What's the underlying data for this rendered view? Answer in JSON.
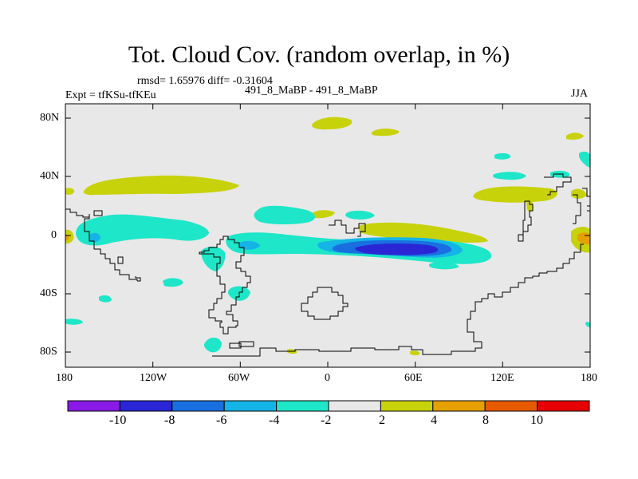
{
  "header": {
    "title": "Tot. Cloud Cov. (random overlap, in %)",
    "stats": "rmsd= 1.65976 diff= -0.31604",
    "experiment": "Expt = tfKSu-tfKEu",
    "comparison": "491_8_MaBP - 491_8_MaBP",
    "season": "JJA"
  },
  "axes": {
    "x_ticks": [
      "180",
      "120W",
      "60W",
      "0",
      "60E",
      "120E",
      "180"
    ],
    "y_ticks": [
      "80N",
      "40N",
      "0",
      "40S",
      "80S"
    ]
  },
  "colorbar": {
    "labels": [
      "-10",
      "-8",
      "-6",
      "-4",
      "-2",
      "2",
      "4",
      "8",
      "10"
    ],
    "colors": [
      "#8a1ae6",
      "#2a26d6",
      "#1a6fe0",
      "#14b4e6",
      "#1ee6c8",
      "#e8e8e8",
      "#c8d20a",
      "#e6a000",
      "#e65a00",
      "#e60000"
    ]
  },
  "map_colors": {
    "background": "#e8e8e8",
    "neg_light": "#1ee6c8",
    "neg_mid": "#14b4e6",
    "neg_strong": "#1a6fe0",
    "neg_deep": "#2a26d6",
    "pos_light": "#c8d20a",
    "pos_mid": "#e6a000"
  }
}
